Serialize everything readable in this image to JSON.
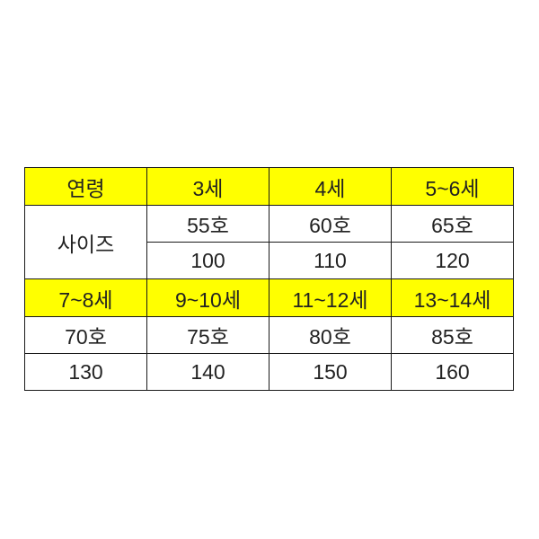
{
  "colors": {
    "header_bg": "#ffff00",
    "border": "#1a1a1a"
  },
  "table": {
    "header1": [
      "연령",
      "3세",
      "4세",
      "5~6세"
    ],
    "size_label": "사이즈",
    "row1_ho": [
      "55호",
      "60호",
      "65호"
    ],
    "row1_cm": [
      "100",
      "110",
      "120"
    ],
    "header2": [
      "7~8세",
      "9~10세",
      "11~12세",
      "13~14세"
    ],
    "row2_ho": [
      "70호",
      "75호",
      "80호",
      "85호"
    ],
    "row2_cm": [
      "130",
      "140",
      "150",
      "160"
    ]
  }
}
